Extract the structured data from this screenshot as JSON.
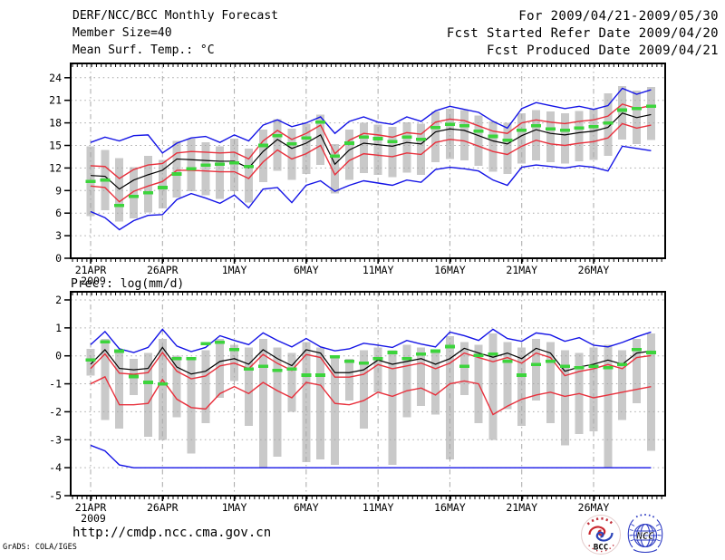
{
  "header": {
    "title": "DERF/NCC/BCC Monthly Forecast",
    "member_size": "Member Size=40",
    "variable_label": "Mean Surf. Temp.: °C",
    "for_range": "For 2009/04/21-2009/05/30",
    "refer_date": "Fcst Started Refer Date 2009/04/20",
    "produced_date": "Fcst Produced Date 2009/04/21"
  },
  "footer": {
    "url": "http://cmdp.ncc.cma.gov.cn",
    "grads_credit": "GrADS: COLA/IGES",
    "logos": {
      "bcc_label": "BCC",
      "ncc_label": "NCC"
    }
  },
  "colors": {
    "envelope_blue": "#1414e6",
    "band_red": "#e8303c",
    "mean_black": "#000000",
    "obs_green": "#3cd43c",
    "spread_gray": "#c9c9c9",
    "gridline_gray": "#a8a8a8"
  },
  "chart_data": [
    {
      "name": "temperature",
      "type": "line",
      "title": "Mean Surf. Temp.: °C",
      "show_title": false,
      "ylim": [
        0,
        24
      ],
      "yticks": [
        0,
        3,
        6,
        9,
        12,
        15,
        18,
        21,
        24
      ],
      "grid": true,
      "n_points": 40,
      "x_major_ticks": [
        {
          "day": 1,
          "label": "21APR",
          "sublabel": "2009"
        },
        {
          "day": 6,
          "label": "26APR"
        },
        {
          "day": 11,
          "label": "1MAY"
        },
        {
          "day": 16,
          "label": "6MAY"
        },
        {
          "day": 21,
          "label": "11MAY"
        },
        {
          "day": 26,
          "label": "16MAY"
        },
        {
          "day": 31,
          "label": "21MAY"
        },
        {
          "day": 36,
          "label": "26MAY"
        }
      ],
      "series": [
        {
          "name": "member-spread",
          "type": "bar",
          "color": "#c9c9c9",
          "lo": [
            5.6,
            6.4,
            4.9,
            5.3,
            6.1,
            6.6,
            8.1,
            8.9,
            8.4,
            7.9,
            8.9,
            7.4,
            10.1,
            11.6,
            10.4,
            11.2,
            12.4,
            8.6,
            10.4,
            11.3,
            11.1,
            10.8,
            11.4,
            11.1,
            12.8,
            13.2,
            13.0,
            12.3,
            11.5,
            11.2,
            12.6,
            13.0,
            12.8,
            12.6,
            12.9,
            13.1,
            13.6,
            15.8,
            15.2,
            15.7
          ],
          "hi": [
            14.9,
            14.4,
            13.3,
            12.1,
            13.6,
            13.1,
            15.6,
            15.9,
            15.4,
            14.9,
            15.9,
            14.6,
            17.1,
            18.5,
            17.2,
            17.9,
            19.1,
            15.2,
            17.1,
            18.0,
            17.8,
            17.5,
            18.1,
            17.9,
            19.5,
            19.9,
            19.7,
            19.0,
            18.2,
            18.0,
            19.3,
            19.7,
            19.5,
            19.3,
            19.6,
            19.8,
            21.9,
            22.9,
            22.3,
            22.8
          ]
        },
        {
          "name": "ensemble-max",
          "type": "line",
          "color": "#1414e6",
          "values": [
            15.4,
            16.1,
            15.6,
            16.3,
            16.4,
            14.0,
            15.3,
            16.0,
            16.2,
            15.4,
            16.4,
            15.6,
            17.7,
            18.4,
            17.5,
            18.0,
            18.8,
            16.6,
            18.2,
            18.8,
            18.1,
            17.8,
            18.8,
            18.2,
            19.6,
            20.2,
            19.8,
            19.4,
            18.2,
            17.3,
            19.9,
            20.7,
            20.3,
            19.9,
            20.2,
            19.8,
            20.3,
            22.6,
            21.8,
            22.4
          ]
        },
        {
          "name": "ensemble-min",
          "type": "line",
          "color": "#1414e6",
          "values": [
            6.2,
            5.4,
            3.8,
            5.0,
            5.7,
            5.8,
            7.8,
            8.6,
            8.0,
            7.3,
            8.4,
            6.7,
            9.2,
            9.4,
            7.4,
            9.7,
            10.3,
            8.9,
            9.7,
            10.3,
            10.0,
            9.7,
            10.4,
            10.1,
            11.8,
            12.1,
            11.9,
            11.6,
            10.4,
            9.7,
            12.1,
            12.4,
            12.2,
            12.0,
            12.3,
            12.1,
            11.6,
            14.9,
            14.6,
            14.3
          ]
        },
        {
          "name": "upper-band",
          "type": "line",
          "color": "#e8303c",
          "values": [
            12.3,
            12.2,
            10.6,
            11.8,
            12.4,
            12.6,
            14.0,
            14.2,
            14.1,
            14.0,
            14.1,
            13.2,
            15.6,
            17.0,
            15.8,
            16.6,
            17.7,
            13.9,
            15.7,
            16.6,
            16.4,
            16.1,
            16.7,
            16.5,
            18.1,
            18.5,
            18.3,
            17.6,
            16.9,
            16.6,
            18.0,
            18.4,
            18.1,
            17.9,
            18.2,
            18.4,
            18.9,
            20.5,
            19.9,
            20.3
          ]
        },
        {
          "name": "lower-band",
          "type": "line",
          "color": "#e8303c",
          "values": [
            9.6,
            9.4,
            7.5,
            8.9,
            9.6,
            10.2,
            11.7,
            11.7,
            11.6,
            11.5,
            11.5,
            10.6,
            12.8,
            14.4,
            13.2,
            13.9,
            15.0,
            11.1,
            13.0,
            13.9,
            13.7,
            13.5,
            14.0,
            13.8,
            15.4,
            15.8,
            15.6,
            14.9,
            14.2,
            13.8,
            14.9,
            15.7,
            15.2,
            15.0,
            15.3,
            15.5,
            16.0,
            17.9,
            17.3,
            17.7
          ]
        },
        {
          "name": "ensemble-mean",
          "type": "line",
          "color": "#000000",
          "values": [
            11.0,
            10.9,
            9.2,
            10.4,
            11.1,
            11.7,
            13.2,
            13.1,
            13.0,
            12.9,
            12.9,
            12.0,
            14.2,
            15.8,
            14.6,
            15.3,
            16.4,
            12.5,
            14.4,
            15.3,
            15.1,
            14.9,
            15.4,
            15.2,
            16.8,
            17.2,
            17.0,
            16.3,
            15.6,
            15.2,
            16.3,
            17.1,
            16.6,
            16.4,
            16.7,
            16.9,
            17.4,
            19.3,
            18.7,
            19.1
          ]
        },
        {
          "name": "climatology",
          "type": "dash",
          "color": "#3cd43c",
          "values": [
            10.2,
            10.4,
            7.0,
            8.2,
            8.7,
            9.4,
            11.2,
            11.9,
            12.4,
            12.5,
            12.7,
            12.2,
            15.0,
            16.3,
            15.2,
            16.0,
            18.1,
            13.6,
            15.3,
            16.1,
            15.9,
            15.5,
            16.1,
            15.8,
            17.4,
            17.8,
            17.6,
            16.9,
            16.2,
            15.7,
            17.0,
            17.6,
            17.2,
            17.0,
            17.3,
            17.5,
            18.0,
            19.7,
            19.9,
            20.2
          ]
        }
      ]
    },
    {
      "name": "precipitation",
      "type": "line",
      "title": "Prec.: log(mm/d)",
      "show_title": true,
      "ylim": [
        -5,
        2
      ],
      "yticks": [
        2,
        1,
        0,
        -1,
        -2,
        -3,
        -4,
        -5
      ],
      "grid": true,
      "n_points": 40,
      "x_major_ticks": [
        {
          "day": 1,
          "label": "21APR",
          "sublabel": "2009"
        },
        {
          "day": 6,
          "label": "26APR"
        },
        {
          "day": 11,
          "label": "1MAY"
        },
        {
          "day": 16,
          "label": "6MAY"
        },
        {
          "day": 21,
          "label": "11MAY"
        },
        {
          "day": 26,
          "label": "16MAY"
        },
        {
          "day": 31,
          "label": "21MAY"
        },
        {
          "day": 36,
          "label": "26MAY"
        }
      ],
      "series": [
        {
          "name": "member-spread",
          "type": "bar",
          "color": "#c9c9c9",
          "lo": [
            -0.7,
            -2.3,
            -2.6,
            -1.4,
            -2.9,
            -3.0,
            -2.2,
            -3.5,
            -2.4,
            -1.5,
            -0.9,
            -2.5,
            -4.0,
            -3.6,
            -2.0,
            -3.8,
            -3.7,
            -3.9,
            -1.6,
            -2.6,
            -1.3,
            -3.9,
            -2.2,
            -1.8,
            -2.1,
            -3.7,
            -1.4,
            -2.4,
            -3.0,
            -1.9,
            -2.5,
            -1.6,
            -2.4,
            -3.2,
            -2.8,
            -2.7,
            -4.0,
            -2.3,
            -1.7,
            -3.4
          ],
          "hi": [
            0.25,
            0.6,
            0.1,
            -0.1,
            0.1,
            0.6,
            0.0,
            -0.1,
            0.2,
            0.6,
            0.4,
            0.3,
            0.6,
            0.3,
            0.1,
            0.5,
            0.3,
            0.0,
            -0.1,
            0.2,
            0.3,
            0.2,
            0.4,
            0.3,
            0.2,
            0.7,
            0.5,
            0.4,
            0.8,
            0.5,
            0.3,
            0.6,
            0.5,
            0.2,
            0.1,
            0.3,
            0.4,
            0.2,
            0.6,
            0.8
          ]
        },
        {
          "name": "ensemble-max",
          "type": "line",
          "color": "#1414e6",
          "values": [
            0.4,
            0.87,
            0.25,
            0.12,
            0.3,
            0.95,
            0.35,
            0.15,
            0.3,
            0.72,
            0.55,
            0.4,
            0.82,
            0.55,
            0.32,
            0.62,
            0.32,
            0.18,
            0.25,
            0.45,
            0.38,
            0.3,
            0.55,
            0.42,
            0.32,
            0.85,
            0.72,
            0.55,
            0.95,
            0.62,
            0.52,
            0.82,
            0.75,
            0.52,
            0.65,
            0.38,
            0.32,
            0.48,
            0.68,
            0.85
          ]
        },
        {
          "name": "ensemble-min",
          "type": "line",
          "color": "#1414e6",
          "values": [
            -3.2,
            -3.4,
            -3.9,
            -4.0,
            -4.0,
            -4.0,
            -4.0,
            -4.0,
            -4.0,
            -4.0,
            -4.0,
            -4.0,
            -4.0,
            -4.0,
            -4.0,
            -4.0,
            -4.0,
            -4.0,
            -4.0,
            -4.0,
            -4.0,
            -4.0,
            -4.0,
            -4.0,
            -4.0,
            -4.0,
            -4.0,
            -4.0,
            -4.0,
            -4.0,
            -4.0,
            -4.0,
            -4.0,
            -4.0,
            -4.0,
            -4.0,
            -4.0,
            -4.0,
            -4.0,
            -4.0
          ]
        },
        {
          "name": "upper-band",
          "type": "line",
          "color": "#e8303c",
          "values": [
            -0.45,
            0.07,
            -0.62,
            -0.66,
            -0.6,
            0.12,
            -0.55,
            -0.82,
            -0.72,
            -0.36,
            -0.26,
            -0.46,
            0.05,
            -0.27,
            -0.52,
            0.05,
            -0.06,
            -0.76,
            -0.76,
            -0.66,
            -0.31,
            -0.46,
            -0.36,
            -0.26,
            -0.46,
            -0.26,
            0.1,
            -0.06,
            -0.21,
            -0.06,
            -0.26,
            0.1,
            -0.06,
            -0.71,
            -0.56,
            -0.46,
            -0.31,
            -0.46,
            -0.06,
            0.01
          ]
        },
        {
          "name": "lower-band",
          "type": "line",
          "color": "#e8303c",
          "values": [
            -1.0,
            -0.75,
            -1.75,
            -1.75,
            -1.7,
            -0.85,
            -1.55,
            -1.85,
            -1.9,
            -1.35,
            -1.1,
            -1.35,
            -0.95,
            -1.25,
            -1.5,
            -0.95,
            -1.05,
            -1.7,
            -1.75,
            -1.6,
            -1.3,
            -1.45,
            -1.25,
            -1.15,
            -1.4,
            -1.0,
            -0.9,
            -1.0,
            -2.1,
            -1.8,
            -1.55,
            -1.4,
            -1.3,
            -1.45,
            -1.35,
            -1.5,
            -1.4,
            -1.3,
            -1.2,
            -1.1
          ]
        },
        {
          "name": "ensemble-mean",
          "type": "line",
          "color": "#000000",
          "values": [
            -0.3,
            0.22,
            -0.45,
            -0.5,
            -0.45,
            0.3,
            -0.4,
            -0.65,
            -0.55,
            -0.2,
            -0.1,
            -0.3,
            0.22,
            -0.1,
            -0.35,
            0.22,
            0.1,
            -0.6,
            -0.6,
            -0.5,
            -0.15,
            -0.3,
            -0.2,
            -0.1,
            -0.3,
            -0.1,
            0.27,
            0.1,
            -0.05,
            0.1,
            -0.1,
            0.27,
            0.1,
            -0.55,
            -0.4,
            -0.3,
            -0.15,
            -0.3,
            0.1,
            0.17
          ]
        },
        {
          "name": "climatology",
          "type": "dash",
          "color": "#3cd43c",
          "values": [
            -0.15,
            0.5,
            0.17,
            -0.74,
            -0.95,
            -1.0,
            -0.1,
            -0.1,
            0.44,
            0.49,
            0.22,
            -0.47,
            -0.37,
            -0.52,
            -0.47,
            -0.69,
            -0.69,
            -0.04,
            -0.2,
            -0.26,
            -0.1,
            0.12,
            -0.1,
            0.06,
            0.17,
            0.33,
            -0.37,
            0.01,
            0.06,
            -0.2,
            -0.69,
            -0.31,
            -0.2,
            -0.37,
            -0.42,
            -0.37,
            -0.42,
            -0.31,
            0.22,
            0.12
          ]
        }
      ]
    }
  ]
}
